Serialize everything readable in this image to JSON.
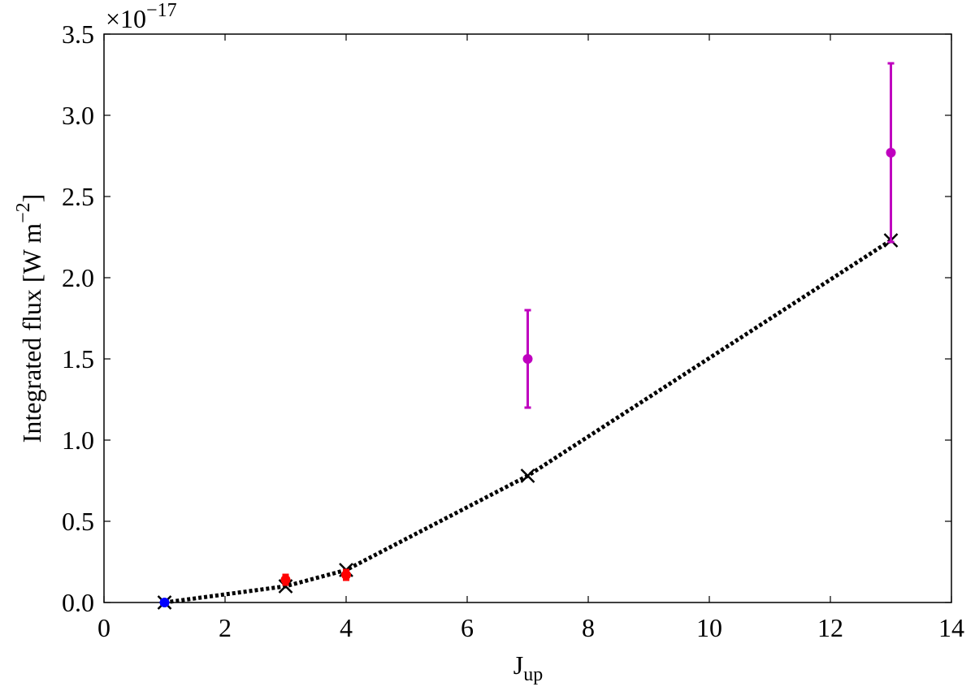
{
  "chart_data": {
    "type": "scatter",
    "xlabel": [
      "J",
      "up"
    ],
    "ylabel": [
      "Integrated flux [W m",
      "−2",
      "]"
    ],
    "multiplier": [
      "×10",
      "−17"
    ],
    "xlim": [
      0,
      14
    ],
    "ylim": [
      0,
      3.5
    ],
    "xticks": [
      0,
      2,
      4,
      6,
      8,
      10,
      12,
      14
    ],
    "yticks": [
      {
        "value": 0,
        "label": "0.0"
      },
      0.5,
      {
        "value": 1,
        "label": "1.0"
      },
      1.5,
      {
        "value": 2,
        "label": "2.0"
      },
      2.5,
      {
        "value": 3,
        "label": "3.0"
      },
      3.5
    ],
    "series": [
      {
        "color": "#000000",
        "marker": "x",
        "line": "dotted",
        "x": [
          1,
          3,
          4,
          7,
          13
        ],
        "values": [
          0.0,
          0.1,
          0.2,
          0.78,
          2.23
        ]
      },
      {
        "color": "#0000ff",
        "marker": "o",
        "x": [
          1
        ],
        "values": [
          0.0
        ]
      },
      {
        "color": "#ff0000",
        "marker": "o",
        "x": [
          3,
          4
        ],
        "values": [
          0.14,
          0.17
        ],
        "errors": [
          0.03,
          0.03
        ]
      },
      {
        "color": "#bf00bf",
        "marker": "o",
        "x": [
          7,
          13
        ],
        "values": [
          1.5,
          2.77
        ],
        "errors": [
          0.3,
          0.55
        ]
      }
    ]
  }
}
